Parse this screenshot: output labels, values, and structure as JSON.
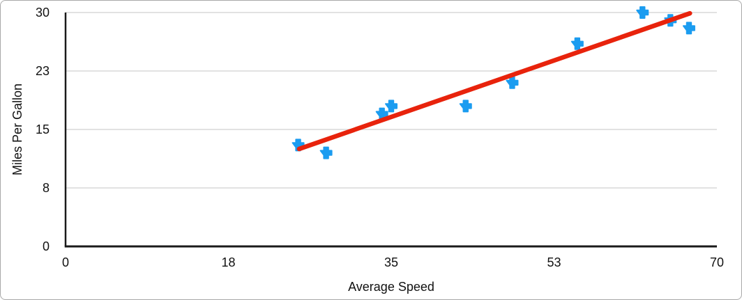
{
  "chart_data": {
    "type": "scatter",
    "title": "",
    "xlabel": "Average Speed",
    "ylabel": "Miles Per Gallon",
    "xlim": [
      0,
      70
    ],
    "ylim": [
      0,
      30
    ],
    "xticks": {
      "values": [
        0,
        17.5,
        35,
        52.5,
        70
      ],
      "labels": [
        "0",
        "18",
        "35",
        "53",
        "70"
      ]
    },
    "yticks": {
      "values": [
        0,
        7.5,
        15,
        22.5,
        30
      ],
      "labels": [
        "0",
        "8",
        "15",
        "23",
        "30"
      ]
    },
    "grid": "horizontal-only",
    "legend": "none",
    "series": [
      {
        "name": "Miles Per Gallon",
        "marker": "plus",
        "color": "#1b9cf0",
        "points": [
          [
            25,
            13
          ],
          [
            28,
            12
          ],
          [
            34,
            17
          ],
          [
            35,
            18
          ],
          [
            43,
            18
          ],
          [
            48,
            21
          ],
          [
            55,
            26
          ],
          [
            62,
            30
          ],
          [
            65,
            29
          ],
          [
            67,
            28
          ]
        ]
      }
    ],
    "trendline": {
      "type": "linear",
      "color": "#e8230c",
      "from": [
        25.1,
        12.5
      ],
      "to": [
        67.1,
        29.9
      ]
    },
    "colors": {
      "axis": "#1a1a1a",
      "grid": "#d9d9d9",
      "text": "#111111",
      "frame_border": "#a8a8a8",
      "background": "#ffffff",
      "marker": "#1b9cf0",
      "trendline": "#e8230c"
    }
  }
}
